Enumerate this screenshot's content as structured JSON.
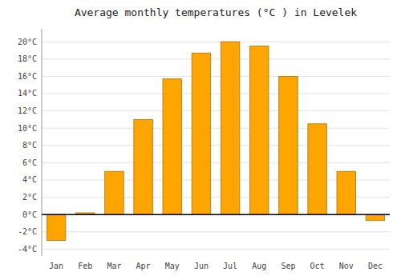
{
  "chart_data": {
    "type": "bar",
    "title": "Average monthly temperatures (°C ) in Levelek",
    "categories": [
      "Jan",
      "Feb",
      "Mar",
      "Apr",
      "May",
      "Jun",
      "Jul",
      "Aug",
      "Sep",
      "Oct",
      "Nov",
      "Dec"
    ],
    "values": [
      -3.0,
      0.2,
      5.0,
      11.0,
      15.7,
      18.7,
      20.0,
      19.5,
      16.0,
      10.5,
      5.0,
      -0.7
    ],
    "color": "#FFA500",
    "ylim": [
      -4.8,
      21.5
    ],
    "yticks": [
      {
        "value": -4,
        "label": "-4°C"
      },
      {
        "value": -2,
        "label": "-2°C"
      },
      {
        "value": 0,
        "label": "0°C"
      },
      {
        "value": 2,
        "label": "2°C"
      },
      {
        "value": 4,
        "label": "4°C"
      },
      {
        "value": 6,
        "label": "6°C"
      },
      {
        "value": 8,
        "label": "8°C"
      },
      {
        "value": 10,
        "label": "10°C"
      },
      {
        "value": 12,
        "label": "12°C"
      },
      {
        "value": 14,
        "label": "14°C"
      },
      {
        "value": 16,
        "label": "16°C"
      },
      {
        "value": 18,
        "label": "18°C"
      },
      {
        "value": 20,
        "label": "20°C"
      }
    ],
    "grid": true
  }
}
